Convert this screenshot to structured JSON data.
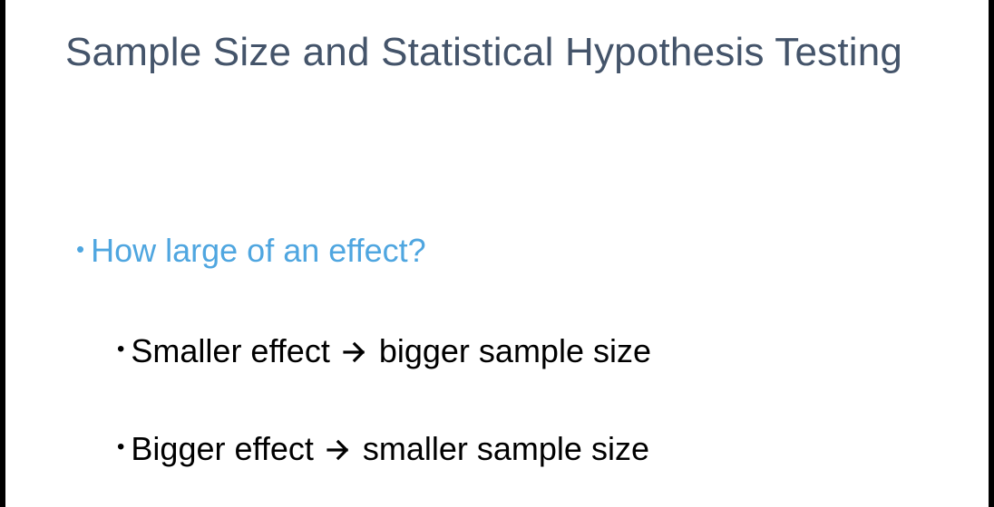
{
  "slide": {
    "title": "Sample Size and Statistical Hypothesis Testing",
    "bullets": [
      {
        "text": "How large of an effect?",
        "color": "#4fa6e0",
        "sub_bullets": [
          {
            "left": "Smaller effect",
            "right": "bigger sample size",
            "icon": "right-arrow-icon"
          },
          {
            "left": "Bigger effect",
            "right": "smaller sample size",
            "icon": "right-arrow-icon"
          }
        ]
      }
    ],
    "bullet_glyph": "•"
  }
}
